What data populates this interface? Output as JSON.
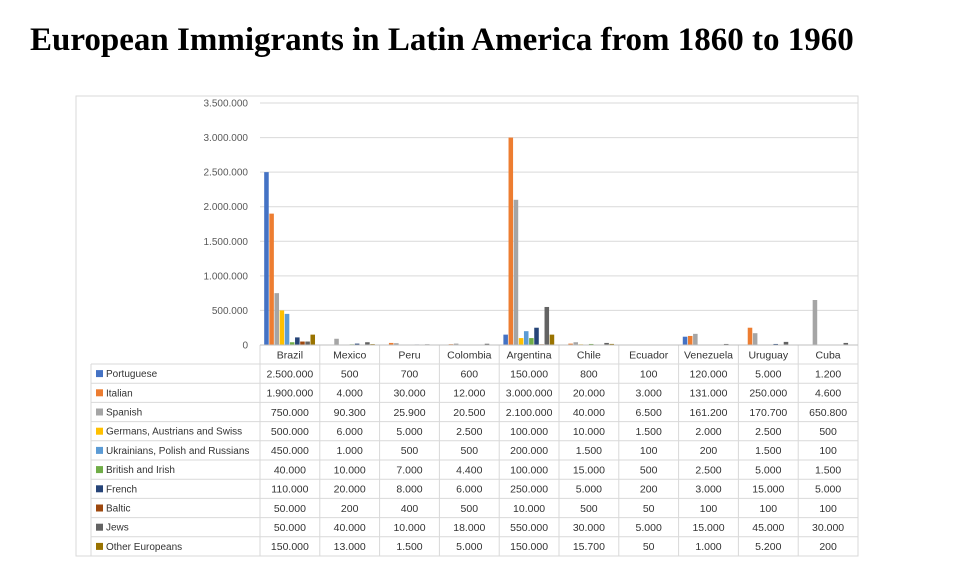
{
  "chart_data": {
    "type": "bar",
    "title": "European Immigrants in Latin America from 1860 to 1960",
    "xlabel": "",
    "ylabel": "",
    "ylim": [
      0,
      3500000
    ],
    "yticks": [
      "0",
      "500.000",
      "1.000.000",
      "1.500.000",
      "2.000.000",
      "2.500.000",
      "3.000.000",
      "3.500.000"
    ],
    "ytick_values": [
      0,
      500000,
      1000000,
      1500000,
      2000000,
      2500000,
      3000000,
      3500000
    ],
    "grid": true,
    "legend": "data-table",
    "categories": [
      "Brazil",
      "Mexico",
      "Peru",
      "Colombia",
      "Argentina",
      "Chile",
      "Ecuador",
      "Venezuela",
      "Uruguay",
      "Cuba"
    ],
    "series": [
      {
        "name": "Portuguese",
        "color": "#4472C4",
        "values": [
          2500000,
          500,
          700,
          600,
          150000,
          800,
          100,
          120000,
          5000,
          1200
        ],
        "labels": [
          "2.500.000",
          "500",
          "700",
          "600",
          "150.000",
          "800",
          "100",
          "120.000",
          "5.000",
          "1.200"
        ]
      },
      {
        "name": "Italian",
        "color": "#ED7D31",
        "values": [
          1900000,
          4000,
          30000,
          12000,
          3000000,
          20000,
          3000,
          131000,
          250000,
          4600
        ],
        "labels": [
          "1.900.000",
          "4.000",
          "30.000",
          "12.000",
          "3.000.000",
          "20.000",
          "3.000",
          "131.000",
          "250.000",
          "4.600"
        ]
      },
      {
        "name": "Spanish",
        "color": "#A5A5A5",
        "values": [
          750000,
          90300,
          25900,
          20500,
          2100000,
          40000,
          6500,
          161200,
          170700,
          650800
        ],
        "labels": [
          "750.000",
          "90.300",
          "25.900",
          "20.500",
          "2.100.000",
          "40.000",
          "6.500",
          "161.200",
          "170.700",
          "650.800"
        ]
      },
      {
        "name": "Germans, Austrians and Swiss",
        "color": "#FFC000",
        "values": [
          500000,
          6000,
          5000,
          2500,
          100000,
          10000,
          1500,
          2000,
          2500,
          500
        ],
        "labels": [
          "500.000",
          "6.000",
          "5.000",
          "2.500",
          "100.000",
          "10.000",
          "1.500",
          "2.000",
          "2.500",
          "500"
        ]
      },
      {
        "name": "Ukrainians, Polish and Russians",
        "color": "#5B9BD5",
        "values": [
          450000,
          1000,
          500,
          500,
          200000,
          1500,
          100,
          200,
          1500,
          100
        ],
        "labels": [
          "450.000",
          "1.000",
          "500",
          "500",
          "200.000",
          "1.500",
          "100",
          "200",
          "1.500",
          "100"
        ]
      },
      {
        "name": "British and Irish",
        "color": "#70AD47",
        "values": [
          40000,
          10000,
          7000,
          4400,
          100000,
          15000,
          500,
          2500,
          5000,
          1500
        ],
        "labels": [
          "40.000",
          "10.000",
          "7.000",
          "4.400",
          "100.000",
          "15.000",
          "500",
          "2.500",
          "5.000",
          "1.500"
        ]
      },
      {
        "name": "French",
        "color": "#264478",
        "values": [
          110000,
          20000,
          8000,
          6000,
          250000,
          5000,
          200,
          3000,
          15000,
          5000
        ],
        "labels": [
          "110.000",
          "20.000",
          "8.000",
          "6.000",
          "250.000",
          "5.000",
          "200",
          "3.000",
          "15.000",
          "5.000"
        ]
      },
      {
        "name": "Baltic",
        "color": "#9E480E",
        "values": [
          50000,
          200,
          400,
          500,
          10000,
          500,
          50,
          100,
          100,
          100
        ],
        "labels": [
          "50.000",
          "200",
          "400",
          "500",
          "10.000",
          "500",
          "50",
          "100",
          "100",
          "100"
        ]
      },
      {
        "name": "Jews",
        "color": "#636363",
        "values": [
          50000,
          40000,
          10000,
          18000,
          550000,
          30000,
          5000,
          15000,
          45000,
          30000
        ],
        "labels": [
          "50.000",
          "40.000",
          "10.000",
          "18.000",
          "550.000",
          "30.000",
          "5.000",
          "15.000",
          "45.000",
          "30.000"
        ]
      },
      {
        "name": "Other Europeans",
        "color": "#997300",
        "values": [
          150000,
          13000,
          1500,
          5000,
          150000,
          15700,
          50,
          1000,
          5200,
          200
        ],
        "labels": [
          "150.000",
          "13.000",
          "1.500",
          "5.000",
          "150.000",
          "15.700",
          "50",
          "1.000",
          "5.200",
          "200"
        ]
      }
    ]
  }
}
